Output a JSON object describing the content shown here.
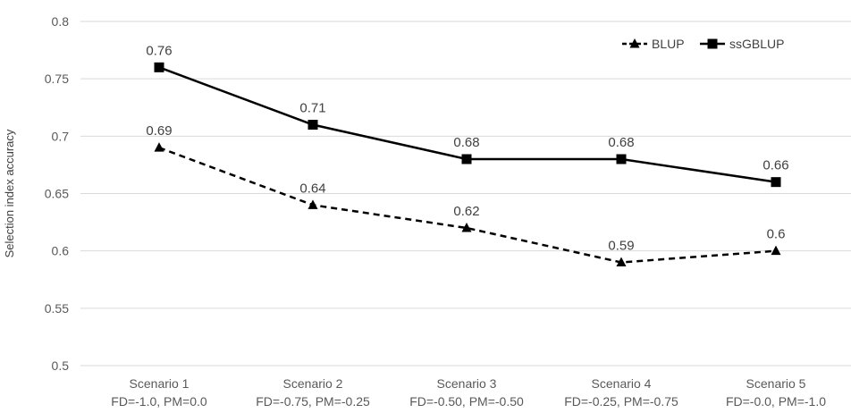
{
  "chart_data": {
    "type": "line",
    "title": "",
    "xlabel": "",
    "ylabel": "Selection index accuracy",
    "ylim": [
      0.5,
      0.8
    ],
    "yticks": [
      "0.5",
      "0.55",
      "0.6",
      "0.65",
      "0.7",
      "0.75",
      "0.8"
    ],
    "categories": [
      [
        "Scenario 1",
        "FD=-1.0, PM=0.0"
      ],
      [
        "Scenario 2",
        "FD=-0.75, PM=-0.25"
      ],
      [
        "Scenario 3",
        "FD=-0.50, PM=-0.50"
      ],
      [
        "Scenario 4",
        "FD=-0.25, PM=-0.75"
      ],
      [
        "Scenario 5",
        "FD=-0.0, PM=-1.0"
      ]
    ],
    "series": [
      {
        "name": "BLUP",
        "values": [
          0.69,
          0.64,
          0.62,
          0.59,
          0.6
        ],
        "labels": [
          "0.69",
          "0.64",
          "0.62",
          "0.59",
          "0.6"
        ],
        "line": "dashed",
        "marker": "triangle",
        "color": "#000000"
      },
      {
        "name": "ssGBLUP",
        "values": [
          0.76,
          0.71,
          0.68,
          0.68,
          0.66
        ],
        "labels": [
          "0.76",
          "0.71",
          "0.68",
          "0.68",
          "0.66"
        ],
        "line": "solid",
        "marker": "square",
        "color": "#000000"
      }
    ],
    "grid": true,
    "legend_position": "top-right",
    "gridline_color": "#d9d9d9"
  }
}
